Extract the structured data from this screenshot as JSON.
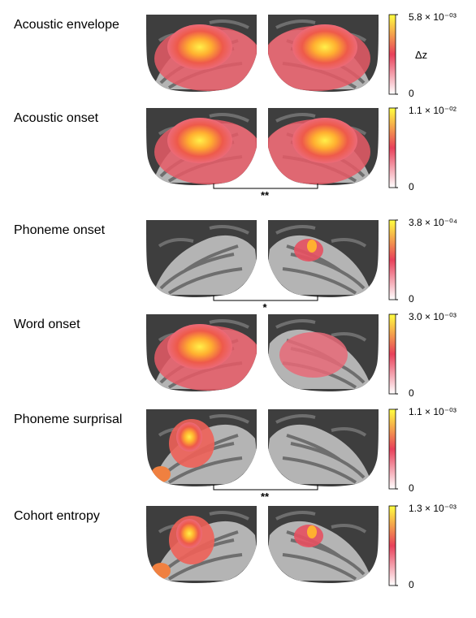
{
  "colorbar": {
    "title": "Δz",
    "colors": {
      "low": "#ffffff",
      "mid": "#e8405a",
      "high": "#ffff40"
    }
  },
  "panels": [
    {
      "title": "Acoustic envelope",
      "max_label": "5.8 × 10⁻⁰³",
      "min_label": "0",
      "significance": "",
      "left_activation": "high",
      "right_activation": "high"
    },
    {
      "title": "Acoustic onset",
      "max_label": "1.1 × 10⁻⁰²",
      "min_label": "0",
      "significance": "**",
      "left_activation": "high",
      "right_activation": "high"
    },
    {
      "title": "Phoneme onset",
      "max_label": "3.8 × 10⁻⁰⁴",
      "min_label": "0",
      "significance": "*",
      "left_activation": "none",
      "right_activation": "focal"
    },
    {
      "title": "Word onset",
      "max_label": "3.0 × 10⁻⁰³",
      "min_label": "0",
      "significance": "",
      "left_activation": "high",
      "right_activation": "weak"
    },
    {
      "title": "Phoneme surprisal",
      "max_label": "1.1 × 10⁻⁰³",
      "min_label": "0",
      "significance": "**",
      "left_activation": "patchy",
      "right_activation": "none"
    },
    {
      "title": "Cohort entropy",
      "max_label": "1.3 × 10⁻⁰³",
      "min_label": "0",
      "significance": "",
      "left_activation": "patchy",
      "right_activation": "focal"
    }
  ]
}
